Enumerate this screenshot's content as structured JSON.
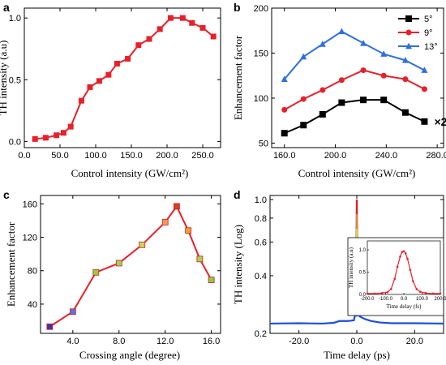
{
  "colors": {
    "red": "#e8202a",
    "black": "#000000",
    "blue": "#2f6fe0",
    "trace_blue": "#1f4ed8",
    "axis": "#000000"
  },
  "chart_data": [
    {
      "panel": "a",
      "type": "line",
      "xlabel": "Control intensity (GW/cm²)",
      "ylabel": "TH intensity (a.u)",
      "xlim": [
        0,
        275
      ],
      "ylim": [
        -0.05,
        1.08
      ],
      "xticks": [
        0,
        50,
        100,
        150,
        200,
        250
      ],
      "xtick_labels": [
        "0.0",
        "50.0",
        "100.0",
        "150.0",
        "200.0",
        "250.0"
      ],
      "yticks": [
        0,
        0.5,
        1.0
      ],
      "ytick_labels": [
        "0.0",
        "0.5",
        "1.0"
      ],
      "series": [
        {
          "marker": "square",
          "color": "#e8202a",
          "x": [
            15,
            30,
            45,
            55,
            65,
            80,
            92,
            105,
            118,
            130,
            145,
            160,
            175,
            190,
            205,
            222,
            235,
            250,
            265
          ],
          "y": [
            0.02,
            0.03,
            0.05,
            0.07,
            0.12,
            0.33,
            0.44,
            0.49,
            0.54,
            0.63,
            0.67,
            0.78,
            0.83,
            0.91,
            1.0,
            1.0,
            0.96,
            0.92,
            0.85
          ]
        }
      ]
    },
    {
      "panel": "b",
      "type": "line",
      "xlabel": "Control intensity (GW/cm²)",
      "ylabel": "Enhancement factor",
      "xlim": [
        150,
        285
      ],
      "ylim": [
        45,
        200
      ],
      "xticks": [
        160,
        200,
        240,
        280
      ],
      "xtick_labels": [
        "160.0",
        "200.0",
        "240.0",
        "280.0"
      ],
      "yticks": [
        50,
        100,
        150,
        200
      ],
      "ytick_labels": [
        "50",
        "100",
        "150",
        "200"
      ],
      "legend_position": "top-right",
      "annotation": "×2",
      "series": [
        {
          "name": "5°",
          "marker": "square",
          "color": "#000000",
          "x": [
            160,
            175,
            190,
            205,
            222,
            238,
            255,
            270
          ],
          "y": [
            61,
            70,
            82,
            95,
            98,
            98,
            84,
            74
          ]
        },
        {
          "name": "9°",
          "marker": "circle",
          "color": "#e8202a",
          "x": [
            160,
            175,
            190,
            205,
            222,
            238,
            255,
            270
          ],
          "y": [
            87,
            99,
            109,
            120,
            131,
            125,
            121,
            110
          ]
        },
        {
          "name": "13°",
          "marker": "triangle",
          "color": "#2f6fe0",
          "x": [
            160,
            175,
            190,
            205,
            222,
            238,
            255,
            270
          ],
          "y": [
            121,
            146,
            160,
            174,
            161,
            149,
            142,
            131
          ]
        }
      ]
    },
    {
      "panel": "c",
      "type": "line",
      "xlabel": "Crossing angle (degree)",
      "ylabel": "Enhancement factor",
      "xlim": [
        1.2,
        16.8
      ],
      "ylim": [
        5,
        170
      ],
      "xticks": [
        4,
        8,
        12,
        16
      ],
      "xtick_labels": [
        "4.0",
        "8.0",
        "12.0",
        "16.0"
      ],
      "yticks": [
        40,
        80,
        120,
        160
      ],
      "ytick_labels": [
        "40",
        "80",
        "120",
        "160"
      ],
      "series": [
        {
          "marker": "square",
          "color": "#e8202a",
          "x": [
            2,
            4,
            6,
            8,
            10,
            12,
            13,
            14,
            15,
            16
          ],
          "y": [
            13,
            31,
            78,
            89,
            111,
            138,
            157,
            128,
            94,
            69
          ],
          "point_colors": [
            "#4b2ea8",
            "#5a72e6",
            "#8fd040",
            "#9bd15a",
            "#c2d860",
            "#f09a5a",
            "#d9402a",
            "#f0a030",
            "#a8d050",
            "#8fcc45"
          ]
        }
      ]
    },
    {
      "panel": "d",
      "type": "line",
      "xlabel": "Time delay (ps)",
      "ylabel": "TH intensity (Log)",
      "xlim": [
        -30,
        30
      ],
      "ylim": [
        0.2,
        1.05
      ],
      "yscale": "log",
      "xticks": [
        -20,
        0,
        20
      ],
      "xtick_labels": [
        "-20.0",
        "0.0",
        "20.0"
      ],
      "yticks": [
        0.2,
        0.4,
        0.6,
        0.8,
        1.0
      ],
      "ytick_labels": [
        "0.2",
        "0.4",
        "0.6",
        "0.8",
        "1.0"
      ],
      "series": [
        {
          "marker": "line",
          "color": "#1f4ed8",
          "x": [
            -30,
            -20,
            -12,
            -8,
            -6,
            -3,
            -1,
            -0.3,
            0,
            0.3,
            1,
            3,
            5,
            8,
            12,
            20,
            30
          ],
          "y": [
            0.225,
            0.226,
            0.225,
            0.227,
            0.232,
            0.232,
            0.234,
            0.26,
            1.0,
            0.3,
            0.245,
            0.237,
            0.232,
            0.228,
            0.226,
            0.226,
            0.225
          ]
        }
      ],
      "inset": {
        "type": "line",
        "xlabel": "Time delay (fs)",
        "ylabel": "TH intensity (a.u)",
        "xlim": [
          -200,
          200
        ],
        "ylim": [
          0,
          1.2
        ],
        "xticks": [
          -200,
          -100,
          0,
          100,
          200
        ],
        "xtick_labels": [
          "-200.0",
          "-100.0",
          "0.0",
          "100.0",
          "200.0"
        ],
        "yticks": [
          0,
          0.5,
          1.0
        ],
        "ytick_labels": [
          "0.0",
          "0.5",
          "1.0"
        ],
        "series": [
          {
            "marker": "circle",
            "color": "#e8202a",
            "x": [
              -200,
              -160,
              -120,
              -90,
              -70,
              -50,
              -35,
              -20,
              -10,
              0,
              10,
              20,
              35,
              50,
              70,
              90,
              120,
              160,
              200
            ],
            "y": [
              0.02,
              0.02,
              0.03,
              0.05,
              0.12,
              0.35,
              0.62,
              0.85,
              0.95,
              0.97,
              0.92,
              0.8,
              0.55,
              0.3,
              0.12,
              0.06,
              0.03,
              0.02,
              0.02
            ]
          }
        ]
      }
    }
  ]
}
